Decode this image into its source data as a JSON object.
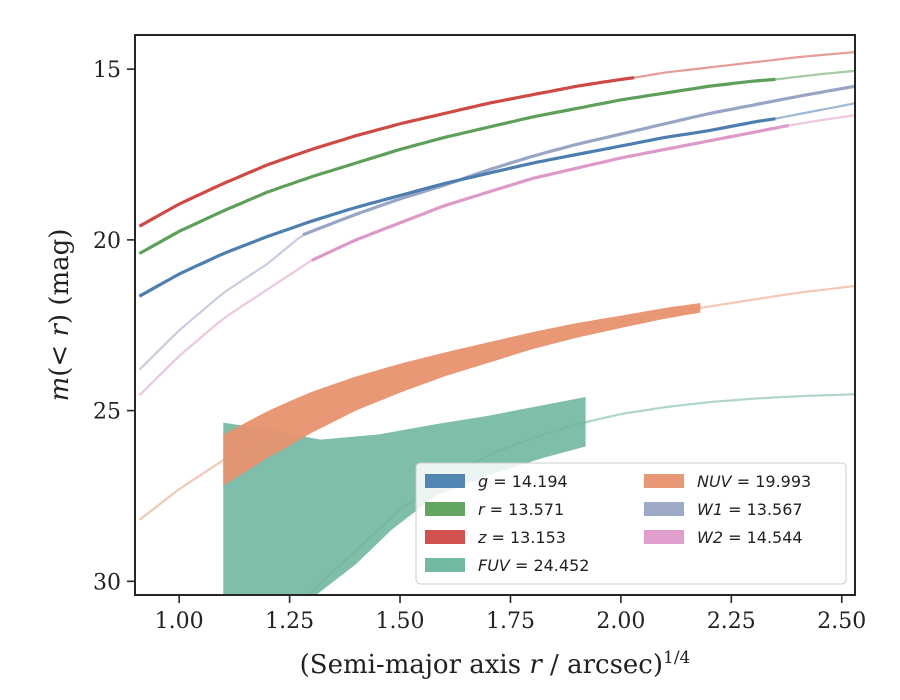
{
  "chart_data": {
    "type": "line",
    "xlabel": "(Semi-major axis r / arcsec)^1/4",
    "ylabel": "m(< r) (mag)",
    "xlim": [
      0.9,
      2.53
    ],
    "ylim": [
      30.4,
      14.0
    ],
    "y_inverted": true,
    "xticks": [
      "1.00",
      "1.25",
      "1.50",
      "1.75",
      "2.00",
      "2.25",
      "2.50"
    ],
    "yticks": [
      "15",
      "20",
      "25",
      "30"
    ],
    "grid": false,
    "legend_placement": "lower-right",
    "legend_columns": 2,
    "series": [
      {
        "key": "g",
        "name": "g = 14.194",
        "color": "#4c7fb0",
        "band": 0.15,
        "data_xmax": 2.35,
        "x": [
          0.91,
          1.0,
          1.1,
          1.2,
          1.3,
          1.4,
          1.5,
          1.6,
          1.7,
          1.8,
          1.9,
          2.0,
          2.1,
          2.2,
          2.3,
          2.35,
          2.45,
          2.53
        ],
        "y": [
          21.65,
          21.0,
          20.4,
          19.9,
          19.45,
          19.05,
          18.7,
          18.35,
          18.05,
          17.75,
          17.5,
          17.25,
          17.0,
          16.8,
          16.55,
          16.45,
          16.2,
          16.0
        ]
      },
      {
        "key": "r",
        "name": "r = 13.571",
        "color": "#5da05a",
        "band": 0.12,
        "data_xmax": 2.35,
        "x": [
          0.91,
          1.0,
          1.1,
          1.2,
          1.3,
          1.4,
          1.5,
          1.6,
          1.7,
          1.8,
          1.9,
          2.0,
          2.1,
          2.2,
          2.3,
          2.35,
          2.45,
          2.53
        ],
        "y": [
          20.4,
          19.75,
          19.15,
          18.6,
          18.15,
          17.75,
          17.35,
          17.0,
          16.7,
          16.4,
          16.15,
          15.9,
          15.7,
          15.5,
          15.35,
          15.3,
          15.15,
          15.05
        ]
      },
      {
        "key": "z",
        "name": "z = 13.153",
        "color": "#d04a45",
        "band": 0.12,
        "data_xmax": 2.03,
        "x": [
          0.91,
          1.0,
          1.1,
          1.2,
          1.3,
          1.4,
          1.5,
          1.6,
          1.7,
          1.8,
          1.9,
          2.0,
          2.03,
          2.1,
          2.2,
          2.3,
          2.4,
          2.53
        ],
        "y": [
          19.6,
          18.95,
          18.35,
          17.8,
          17.35,
          16.95,
          16.6,
          16.3,
          16.0,
          15.75,
          15.5,
          15.3,
          15.25,
          15.1,
          14.95,
          14.8,
          14.65,
          14.5
        ]
      },
      {
        "key": "fuv",
        "name": "FUV = 24.452",
        "color": "#6db59f",
        "band": 0,
        "data_xmax": 1.92,
        "x": [
          1.1,
          1.2,
          1.3,
          1.4,
          1.5,
          1.6,
          1.7,
          1.8,
          1.9,
          2.0,
          2.1,
          2.2,
          2.3,
          2.4,
          2.53
        ],
        "y": [
          33.0,
          31.5,
          30.3,
          29.1,
          27.9,
          27.0,
          26.3,
          25.8,
          25.4,
          25.1,
          24.9,
          24.75,
          24.65,
          24.58,
          24.52
        ],
        "band_upper_x": [
          1.1,
          1.2,
          1.32,
          1.45,
          1.58,
          1.7,
          1.82,
          1.92
        ],
        "band_upper_y": [
          25.35,
          25.55,
          25.85,
          25.7,
          25.4,
          25.15,
          24.85,
          24.6
        ],
        "band_lower_x": [
          1.92,
          1.82,
          1.7,
          1.58,
          1.48,
          1.4,
          1.3,
          1.2,
          1.1
        ],
        "band_lower_y": [
          26.05,
          26.4,
          26.9,
          27.5,
          28.5,
          29.5,
          30.5,
          31.5,
          32.5
        ]
      },
      {
        "key": "nuv",
        "name": "NUV = 19.993",
        "color": "#e8926f",
        "band": 0,
        "data_xmax": 2.18,
        "x": [
          0.91,
          1.0,
          1.1,
          1.2,
          1.3,
          1.4,
          1.5,
          1.6,
          1.7,
          1.8,
          1.9,
          2.0,
          2.1,
          2.2,
          2.3,
          2.4,
          2.53
        ],
        "y": [
          28.2,
          27.3,
          26.45,
          25.7,
          25.05,
          24.5,
          24.05,
          23.65,
          23.3,
          22.95,
          22.65,
          22.4,
          22.15,
          21.95,
          21.75,
          21.55,
          21.35
        ],
        "band_width_x": [
          1.1,
          1.25,
          1.4,
          1.6,
          1.8,
          2.0,
          2.18
        ],
        "band_width_y": [
          0.75,
          0.65,
          0.5,
          0.35,
          0.25,
          0.18,
          0.14
        ]
      },
      {
        "key": "w1",
        "name": "W1 = 13.567",
        "color": "#98a5c5",
        "band": 0.08,
        "data_xmax": 2.53,
        "data_xmin": 1.28,
        "x": [
          0.91,
          1.0,
          1.1,
          1.2,
          1.28,
          1.4,
          1.5,
          1.6,
          1.7,
          1.8,
          1.9,
          2.0,
          2.1,
          2.2,
          2.3,
          2.4,
          2.53
        ],
        "y": [
          23.8,
          22.65,
          21.55,
          20.7,
          19.85,
          19.25,
          18.8,
          18.4,
          17.95,
          17.55,
          17.2,
          16.9,
          16.6,
          16.3,
          16.05,
          15.8,
          15.5
        ]
      },
      {
        "key": "w2",
        "name": "W2 = 14.544",
        "color": "#dd99c8",
        "band": 0.08,
        "data_xmax": 2.38,
        "data_xmin": 1.3,
        "x": [
          0.91,
          1.0,
          1.1,
          1.2,
          1.3,
          1.4,
          1.5,
          1.6,
          1.7,
          1.8,
          1.9,
          2.0,
          2.1,
          2.2,
          2.3,
          2.38,
          2.45,
          2.53
        ],
        "y": [
          24.55,
          23.4,
          22.3,
          21.45,
          20.6,
          20.0,
          19.5,
          19.0,
          18.6,
          18.2,
          17.9,
          17.6,
          17.35,
          17.1,
          16.85,
          16.65,
          16.5,
          16.35
        ]
      }
    ],
    "legend": [
      {
        "label": "g = 14.194",
        "ref": "g"
      },
      {
        "label": "r = 13.571",
        "ref": "r"
      },
      {
        "label": "z = 13.153",
        "ref": "z"
      },
      {
        "label": "FUV = 24.452",
        "ref": "fuv"
      },
      {
        "label": "NUV = 19.993",
        "ref": "nuv"
      },
      {
        "label": "W1 = 13.567",
        "ref": "w1"
      },
      {
        "label": "W2 = 14.544",
        "ref": "w2"
      }
    ]
  }
}
